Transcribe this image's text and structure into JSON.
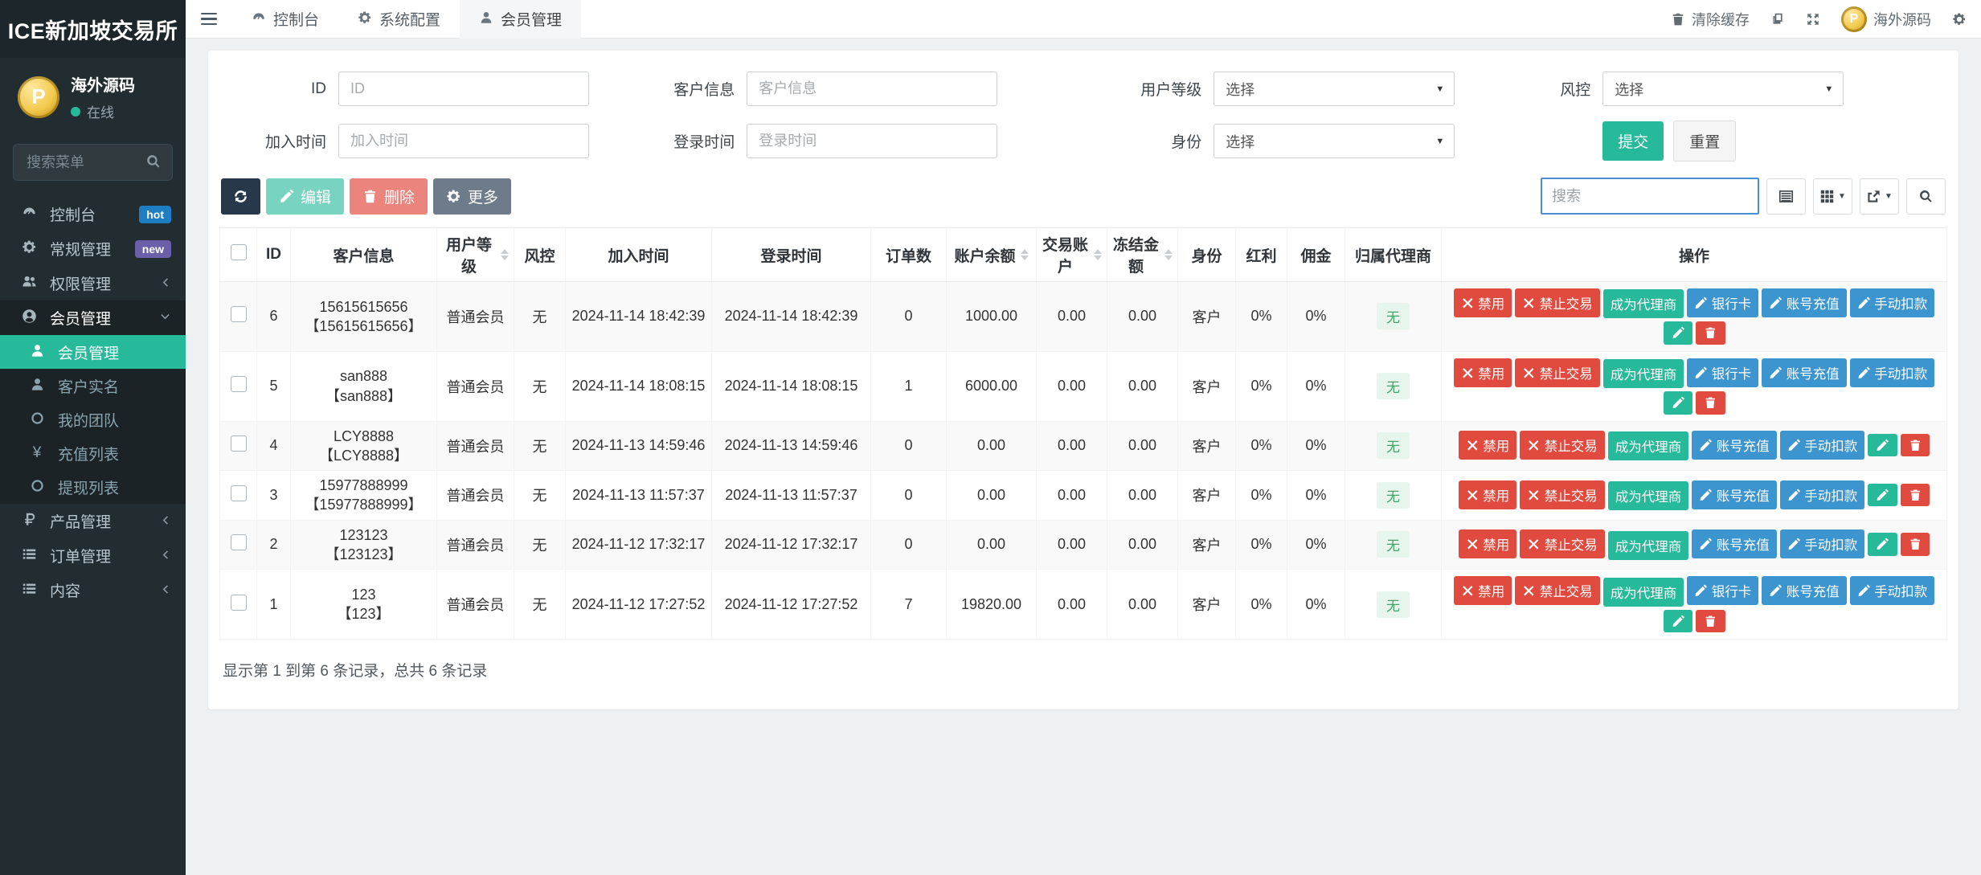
{
  "brand": {
    "title": "ICE新加坡交易所"
  },
  "topbar": {
    "tabs": [
      {
        "label": "控制台",
        "icon": "gauge-icon",
        "active": false
      },
      {
        "label": "系统配置",
        "icon": "gear-icon",
        "active": false
      },
      {
        "label": "会员管理",
        "icon": "user-icon",
        "active": true
      }
    ],
    "clear_cache_label": "清除缓存",
    "username": "海外源码",
    "avatar_letter": "P"
  },
  "sidebar": {
    "user": {
      "name": "海外源码",
      "status": "在线",
      "avatar_letter": "P"
    },
    "search_placeholder": "搜索菜单",
    "menu": [
      {
        "label": "控制台",
        "icon": "gauge-icon",
        "badge": "hot",
        "badge_color": "#1f7dc1",
        "chevron": ""
      },
      {
        "label": "常规管理",
        "icon": "cogs-icon",
        "badge": "new",
        "badge_color": "#6a5fa8",
        "chevron": ""
      },
      {
        "label": "权限管理",
        "icon": "users-icon",
        "badge": "",
        "chevron": "left"
      },
      {
        "label": "会员管理",
        "icon": "user-circle-icon",
        "badge": "",
        "chevron": "down",
        "expanded": true,
        "children": [
          {
            "label": "会员管理",
            "icon": "user-icon",
            "active": true
          },
          {
            "label": "客户实名",
            "icon": "user-icon",
            "active": false
          },
          {
            "label": "我的团队",
            "icon": "circle-icon",
            "active": false
          },
          {
            "label": "充值列表",
            "icon": "yen-icon",
            "active": false
          },
          {
            "label": "提现列表",
            "icon": "circle-icon",
            "active": false
          }
        ]
      },
      {
        "label": "产品管理",
        "icon": "ruble-icon",
        "badge": "",
        "chevron": "left"
      },
      {
        "label": "订单管理",
        "icon": "list-icon",
        "badge": "",
        "chevron": "left"
      },
      {
        "label": "内容",
        "icon": "list-icon",
        "badge": "",
        "chevron": "left"
      }
    ]
  },
  "filters": {
    "fields": [
      {
        "label": "ID",
        "type": "input",
        "placeholder": "ID"
      },
      {
        "label": "客户信息",
        "type": "input",
        "placeholder": "客户信息"
      },
      {
        "label": "用户等级",
        "type": "select",
        "value": "选择"
      },
      {
        "label": "风控",
        "type": "select",
        "value": "选择"
      },
      {
        "label": "加入时间",
        "type": "input",
        "placeholder": "加入时间"
      },
      {
        "label": "登录时间",
        "type": "input",
        "placeholder": "登录时间"
      },
      {
        "label": "身份",
        "type": "select",
        "value": "选择"
      },
      {
        "label": "",
        "type": "buttons"
      }
    ],
    "submit_label": "提交",
    "reset_label": "重置"
  },
  "toolbar": {
    "edit_label": "编辑",
    "delete_label": "删除",
    "more_label": "更多",
    "search_placeholder": "搜索"
  },
  "table": {
    "columns": [
      {
        "key": "id",
        "label": "ID",
        "sortable": false
      },
      {
        "key": "customer",
        "label": "客户信息",
        "sortable": false
      },
      {
        "key": "level",
        "label": "用户等级",
        "sortable": true
      },
      {
        "key": "risk",
        "label": "风控",
        "sortable": false
      },
      {
        "key": "join_time",
        "label": "加入时间",
        "sortable": false
      },
      {
        "key": "login_time",
        "label": "登录时间",
        "sortable": false
      },
      {
        "key": "orders",
        "label": "订单数",
        "sortable": false
      },
      {
        "key": "balance",
        "label": "账户余额",
        "sortable": true
      },
      {
        "key": "trade_account",
        "label": "交易账户",
        "sortable": true
      },
      {
        "key": "frozen",
        "label": "冻结金额",
        "sortable": true
      },
      {
        "key": "identity",
        "label": "身份",
        "sortable": false
      },
      {
        "key": "bonus",
        "label": "红利",
        "sortable": false
      },
      {
        "key": "commission",
        "label": "佣金",
        "sortable": false
      },
      {
        "key": "agent",
        "label": "归属代理商",
        "sortable": false
      },
      {
        "key": "actions",
        "label": "操作",
        "sortable": false
      }
    ],
    "action_labels": {
      "disable": "禁用",
      "forbid_trade": "禁止交易",
      "become_agent": "成为代理商",
      "bank_card": "银行卡",
      "recharge": "账号充值",
      "deduct": "手动扣款"
    },
    "rows": [
      {
        "id": "6",
        "customer_name": "15615615656",
        "customer_account": "【15615615656】",
        "level": "普通会员",
        "risk": "无",
        "join_time": "2024-11-14 18:42:39",
        "login_time": "2024-11-14 18:42:39",
        "orders": "0",
        "balance": "1000.00",
        "trade_account": "0.00",
        "frozen": "0.00",
        "identity": "客户",
        "bonus": "0%",
        "commission": "0%",
        "agent": "无",
        "has_bank_card": true
      },
      {
        "id": "5",
        "customer_name": "san888",
        "customer_account": "【san888】",
        "level": "普通会员",
        "risk": "无",
        "join_time": "2024-11-14 18:08:15",
        "login_time": "2024-11-14 18:08:15",
        "orders": "1",
        "balance": "6000.00",
        "trade_account": "0.00",
        "frozen": "0.00",
        "identity": "客户",
        "bonus": "0%",
        "commission": "0%",
        "agent": "无",
        "has_bank_card": true
      },
      {
        "id": "4",
        "customer_name": "LCY8888",
        "customer_account": "【LCY8888】",
        "level": "普通会员",
        "risk": "无",
        "join_time": "2024-11-13 14:59:46",
        "login_time": "2024-11-13 14:59:46",
        "orders": "0",
        "balance": "0.00",
        "trade_account": "0.00",
        "frozen": "0.00",
        "identity": "客户",
        "bonus": "0%",
        "commission": "0%",
        "agent": "无",
        "has_bank_card": false
      },
      {
        "id": "3",
        "customer_name": "15977888999",
        "customer_account": "【15977888999】",
        "level": "普通会员",
        "risk": "无",
        "join_time": "2024-11-13 11:57:37",
        "login_time": "2024-11-13 11:57:37",
        "orders": "0",
        "balance": "0.00",
        "trade_account": "0.00",
        "frozen": "0.00",
        "identity": "客户",
        "bonus": "0%",
        "commission": "0%",
        "agent": "无",
        "has_bank_card": false
      },
      {
        "id": "2",
        "customer_name": "123123",
        "customer_account": "【123123】",
        "level": "普通会员",
        "risk": "无",
        "join_time": "2024-11-12 17:32:17",
        "login_time": "2024-11-12 17:32:17",
        "orders": "0",
        "balance": "0.00",
        "trade_account": "0.00",
        "frozen": "0.00",
        "identity": "客户",
        "bonus": "0%",
        "commission": "0%",
        "agent": "无",
        "has_bank_card": false
      },
      {
        "id": "1",
        "customer_name": "123",
        "customer_account": "【123】",
        "level": "普通会员",
        "risk": "无",
        "join_time": "2024-11-12 17:27:52",
        "login_time": "2024-11-12 17:27:52",
        "orders": "7",
        "balance": "19820.00",
        "trade_account": "0.00",
        "frozen": "0.00",
        "identity": "客户",
        "bonus": "0%",
        "commission": "0%",
        "agent": "无",
        "has_bank_card": true
      }
    ]
  },
  "footer": {
    "summary": "显示第 1 到第 6 条记录，总共 6 条记录"
  }
}
